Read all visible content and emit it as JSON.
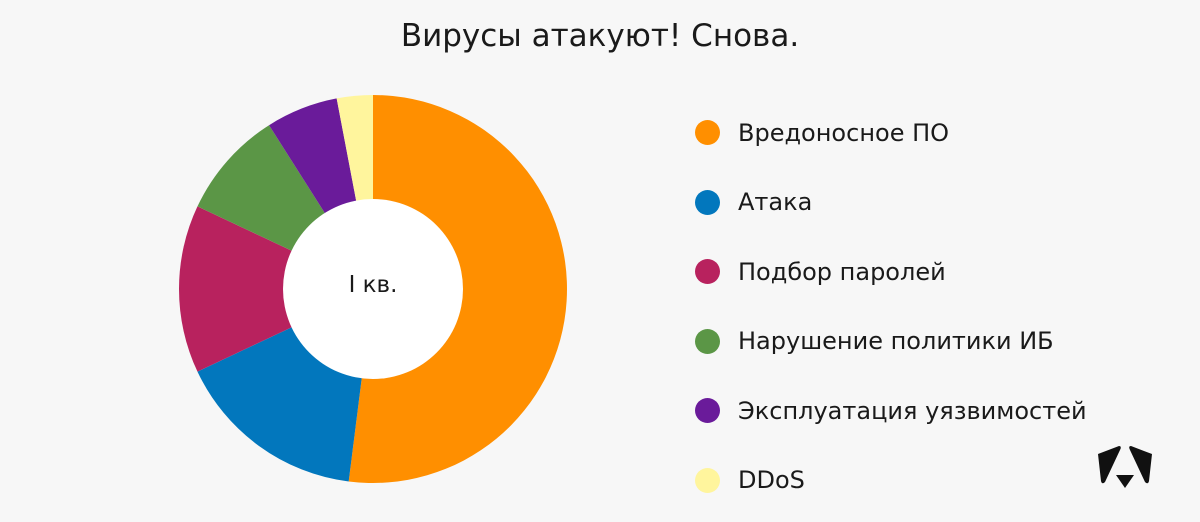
{
  "chart_data": {
    "type": "pie",
    "title": "Вирусы атакуют! Снова.",
    "center_label": "I кв.",
    "donut": true,
    "legend_position": "right",
    "categories": [
      "Вредоносное ПО",
      "Атака",
      "Подбор паролей",
      "Нарушение политики ИБ",
      "Эксплуатация уязвимостей",
      "DDoS"
    ],
    "values": [
      52,
      16,
      14,
      9,
      6,
      3
    ],
    "colors": [
      "#ff8f00",
      "#0277bd",
      "#b8225e",
      "#5b9646",
      "#6a1b9a",
      "#fff59d"
    ]
  }
}
